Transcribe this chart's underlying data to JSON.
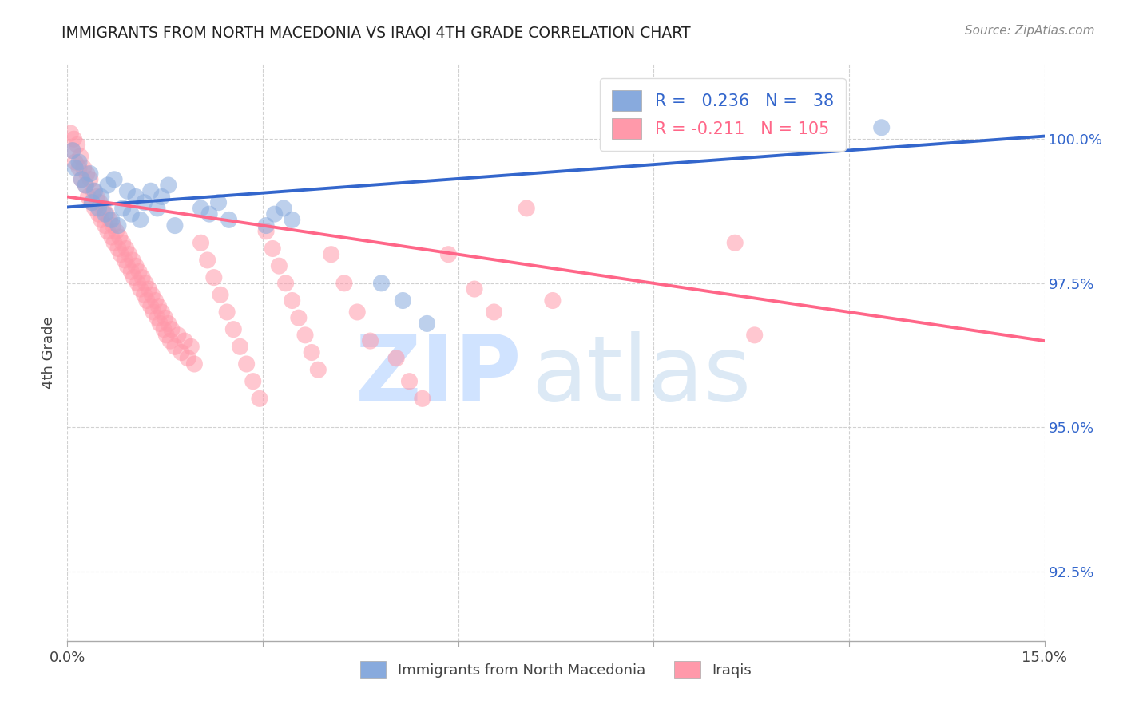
{
  "title": "IMMIGRANTS FROM NORTH MACEDONIA VS IRAQI 4TH GRADE CORRELATION CHART",
  "source": "Source: ZipAtlas.com",
  "ylabel": "4th Grade",
  "yticks": [
    92.5,
    95.0,
    97.5,
    100.0
  ],
  "ytick_labels": [
    "92.5%",
    "95.0%",
    "97.5%",
    "100.0%"
  ],
  "xmin": 0.0,
  "xmax": 15.0,
  "ymin": 91.3,
  "ymax": 101.3,
  "blue_R": 0.236,
  "blue_N": 38,
  "pink_R": -0.211,
  "pink_N": 105,
  "blue_color": "#88AADD",
  "pink_color": "#FF99AA",
  "blue_line_color": "#3366CC",
  "pink_line_color": "#FF6688",
  "legend_label_blue": "Immigrants from North Macedonia",
  "legend_label_pink": "Iraqis",
  "blue_trendline_x": [
    0.0,
    15.0
  ],
  "blue_trendline_y": [
    98.82,
    100.05
  ],
  "pink_trendline_x": [
    0.0,
    15.0
  ],
  "pink_trendline_y": [
    99.0,
    96.5
  ],
  "blue_scatter_x": [
    0.08,
    0.12,
    0.18,
    0.22,
    0.28,
    0.35,
    0.38,
    0.42,
    0.48,
    0.52,
    0.58,
    0.62,
    0.68,
    0.72,
    0.78,
    0.85,
    0.92,
    0.98,
    1.05,
    1.12,
    1.18,
    1.28,
    1.38,
    1.45,
    1.55,
    1.65,
    2.05,
    2.18,
    2.32,
    2.48,
    3.05,
    3.18,
    3.32,
    3.45,
    4.82,
    5.15,
    5.52,
    12.5
  ],
  "blue_scatter_y": [
    99.8,
    99.5,
    99.6,
    99.3,
    99.2,
    99.4,
    98.9,
    99.1,
    98.8,
    99.0,
    98.7,
    99.2,
    98.6,
    99.3,
    98.5,
    98.8,
    99.1,
    98.7,
    99.0,
    98.6,
    98.9,
    99.1,
    98.8,
    99.0,
    99.2,
    98.5,
    98.8,
    98.7,
    98.9,
    98.6,
    98.5,
    98.7,
    98.8,
    98.6,
    97.5,
    97.2,
    96.8,
    100.2
  ],
  "pink_scatter_x": [
    0.05,
    0.08,
    0.1,
    0.12,
    0.15,
    0.18,
    0.2,
    0.22,
    0.25,
    0.28,
    0.3,
    0.32,
    0.35,
    0.38,
    0.4,
    0.42,
    0.45,
    0.48,
    0.5,
    0.52,
    0.55,
    0.58,
    0.6,
    0.62,
    0.65,
    0.68,
    0.7,
    0.72,
    0.75,
    0.78,
    0.8,
    0.82,
    0.85,
    0.88,
    0.9,
    0.92,
    0.95,
    0.98,
    1.0,
    1.02,
    1.05,
    1.08,
    1.1,
    1.12,
    1.15,
    1.18,
    1.2,
    1.22,
    1.25,
    1.28,
    1.3,
    1.32,
    1.35,
    1.38,
    1.4,
    1.42,
    1.45,
    1.48,
    1.5,
    1.52,
    1.55,
    1.58,
    1.6,
    1.65,
    1.7,
    1.75,
    1.8,
    1.85,
    1.9,
    1.95,
    2.05,
    2.15,
    2.25,
    2.35,
    2.45,
    2.55,
    2.65,
    2.75,
    2.85,
    2.95,
    3.05,
    3.15,
    3.25,
    3.35,
    3.45,
    3.55,
    3.65,
    3.75,
    3.85,
    4.05,
    4.25,
    4.45,
    4.65,
    5.05,
    5.25,
    5.45,
    5.85,
    6.25,
    6.55,
    7.05,
    7.45,
    10.25,
    10.55
  ],
  "pink_scatter_y": [
    100.1,
    99.8,
    100.0,
    99.6,
    99.9,
    99.5,
    99.7,
    99.3,
    99.5,
    99.2,
    99.4,
    99.0,
    99.3,
    98.9,
    99.1,
    98.8,
    99.0,
    98.7,
    98.9,
    98.6,
    98.8,
    98.5,
    98.7,
    98.4,
    98.6,
    98.3,
    98.5,
    98.2,
    98.4,
    98.1,
    98.3,
    98.0,
    98.2,
    97.9,
    98.1,
    97.8,
    98.0,
    97.7,
    97.9,
    97.6,
    97.8,
    97.5,
    97.7,
    97.4,
    97.6,
    97.3,
    97.5,
    97.2,
    97.4,
    97.1,
    97.3,
    97.0,
    97.2,
    96.9,
    97.1,
    96.8,
    97.0,
    96.7,
    96.9,
    96.6,
    96.8,
    96.5,
    96.7,
    96.4,
    96.6,
    96.3,
    96.5,
    96.2,
    96.4,
    96.1,
    98.2,
    97.9,
    97.6,
    97.3,
    97.0,
    96.7,
    96.4,
    96.1,
    95.8,
    95.5,
    98.4,
    98.1,
    97.8,
    97.5,
    97.2,
    96.9,
    96.6,
    96.3,
    96.0,
    98.0,
    97.5,
    97.0,
    96.5,
    96.2,
    95.8,
    95.5,
    98.0,
    97.4,
    97.0,
    98.8,
    97.2,
    98.2,
    96.6
  ]
}
